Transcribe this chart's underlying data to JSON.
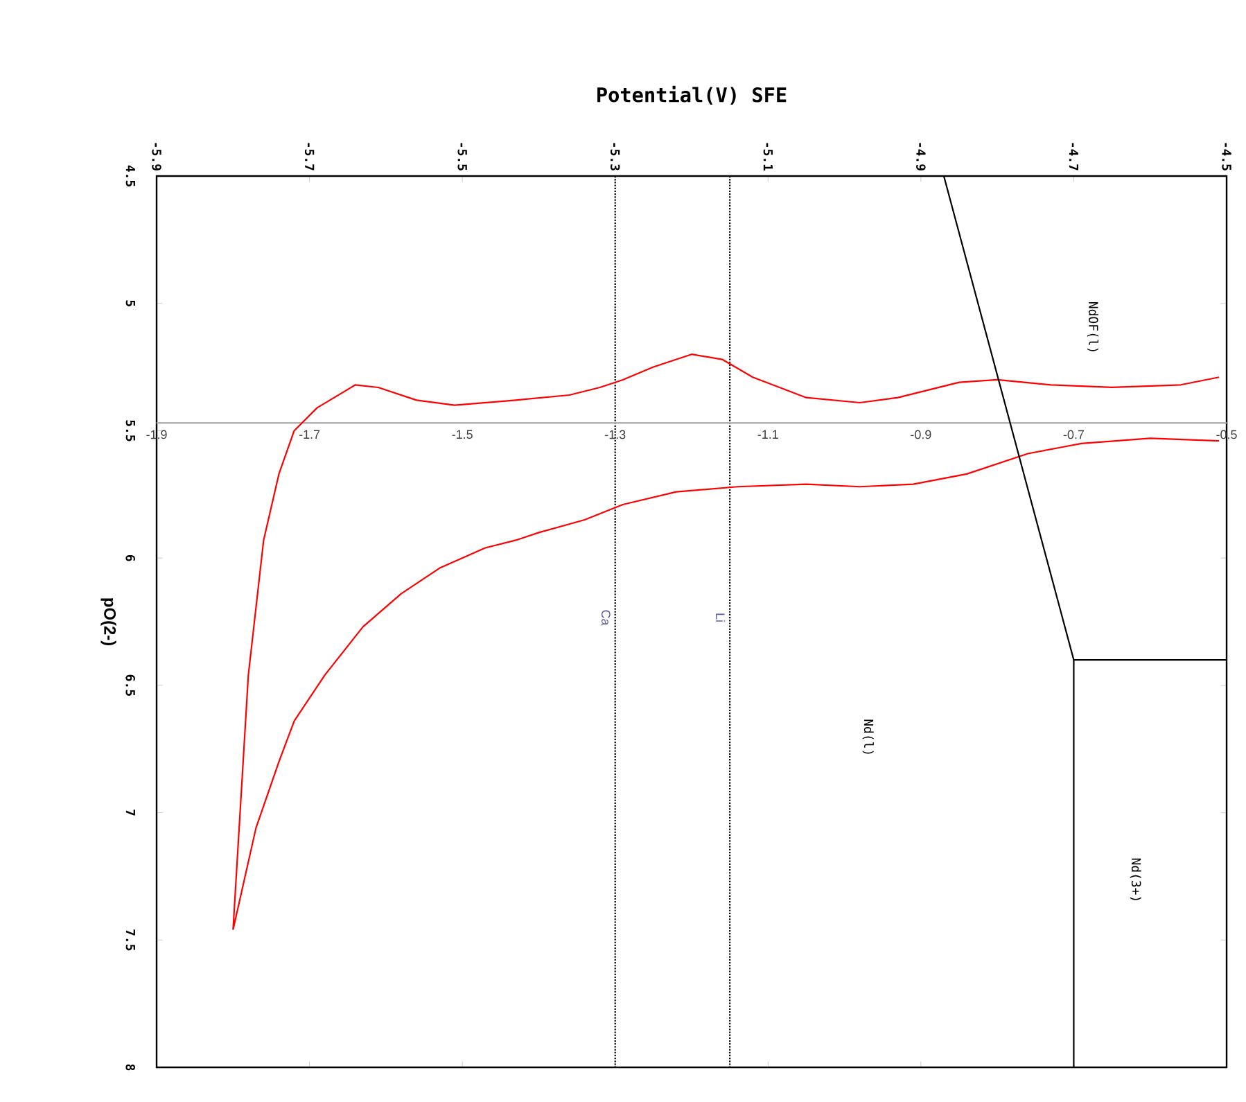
{
  "chart_data": {
    "type": "line",
    "xlabel": "Potential(V) SFE",
    "ylabel": "pO(2-)",
    "xlim": [
      -5.9,
      -4.5
    ],
    "xticks": [
      -5.9,
      -5.7,
      -5.5,
      -5.3,
      -5.1,
      -4.9,
      -4.7,
      -4.5
    ],
    "ylim": [
      8,
      4.5
    ],
    "yticks": [
      4.5,
      5,
      5.5,
      6,
      6.5,
      7,
      7.5,
      8
    ],
    "x2lim": [
      -1.9,
      -0.5
    ],
    "x2ticks": [
      -1.9,
      -1.7,
      -1.5,
      -1.3,
      -1.1,
      -0.9,
      -0.7,
      -0.5
    ],
    "series": [
      {
        "color": "#ff0000",
        "axis": "x2",
        "x": [
          -1.8,
          -1.78,
          -1.76,
          -1.74,
          -1.72,
          -1.69,
          -1.64,
          -1.61,
          -1.56,
          -1.51,
          -1.43,
          -1.36,
          -1.32,
          -1.29,
          -1.25,
          -1.2,
          -1.16,
          -1.12,
          -1.05,
          -0.98,
          -0.93,
          -0.85,
          -0.8,
          -0.73,
          -0.65,
          -0.56,
          -0.51,
          null,
          -0.51,
          -0.6,
          -0.69,
          -0.76,
          -0.84,
          -0.91,
          -0.98,
          -1.05,
          -1.14,
          -1.22,
          -1.29,
          -1.34,
          -1.4,
          -1.43,
          -1.47,
          -1.53,
          -1.58,
          -1.63,
          -1.68,
          -1.72,
          -1.74,
          -1.77,
          -1.8
        ],
        "values": [
          7.46,
          6.46,
          5.93,
          5.67,
          5.5,
          5.41,
          5.32,
          5.33,
          5.38,
          5.4,
          5.38,
          5.36,
          5.33,
          5.3,
          5.25,
          5.2,
          5.22,
          5.29,
          5.37,
          5.39,
          5.37,
          5.31,
          5.3,
          5.32,
          5.33,
          5.32,
          5.29,
          null,
          5.54,
          5.53,
          5.55,
          5.59,
          5.67,
          5.71,
          5.72,
          5.71,
          5.72,
          5.74,
          5.79,
          5.85,
          5.9,
          5.93,
          5.96,
          6.04,
          6.14,
          6.27,
          6.46,
          6.64,
          6.8,
          7.06,
          7.46
        ]
      },
      {
        "color": "#000000",
        "x": [
          -4.87,
          -4.7,
          -4.5
        ],
        "values": [
          4.5,
          6.4,
          6.4
        ]
      },
      {
        "color": "#000000",
        "x": [
          -4.7,
          -4.7
        ],
        "values": [
          6.4,
          8
        ]
      }
    ],
    "ref_lines": [
      {
        "axis": "x",
        "value": -5.3,
        "label": "Ca",
        "color": "#000000",
        "line_style": "dotted"
      },
      {
        "axis": "x",
        "value": -5.15,
        "label": "Li",
        "color": "#000000",
        "line_style": "dotted"
      }
    ],
    "annotations": [
      "NdOF(l)",
      "Nd(l)",
      "Nd(3+)"
    ]
  }
}
